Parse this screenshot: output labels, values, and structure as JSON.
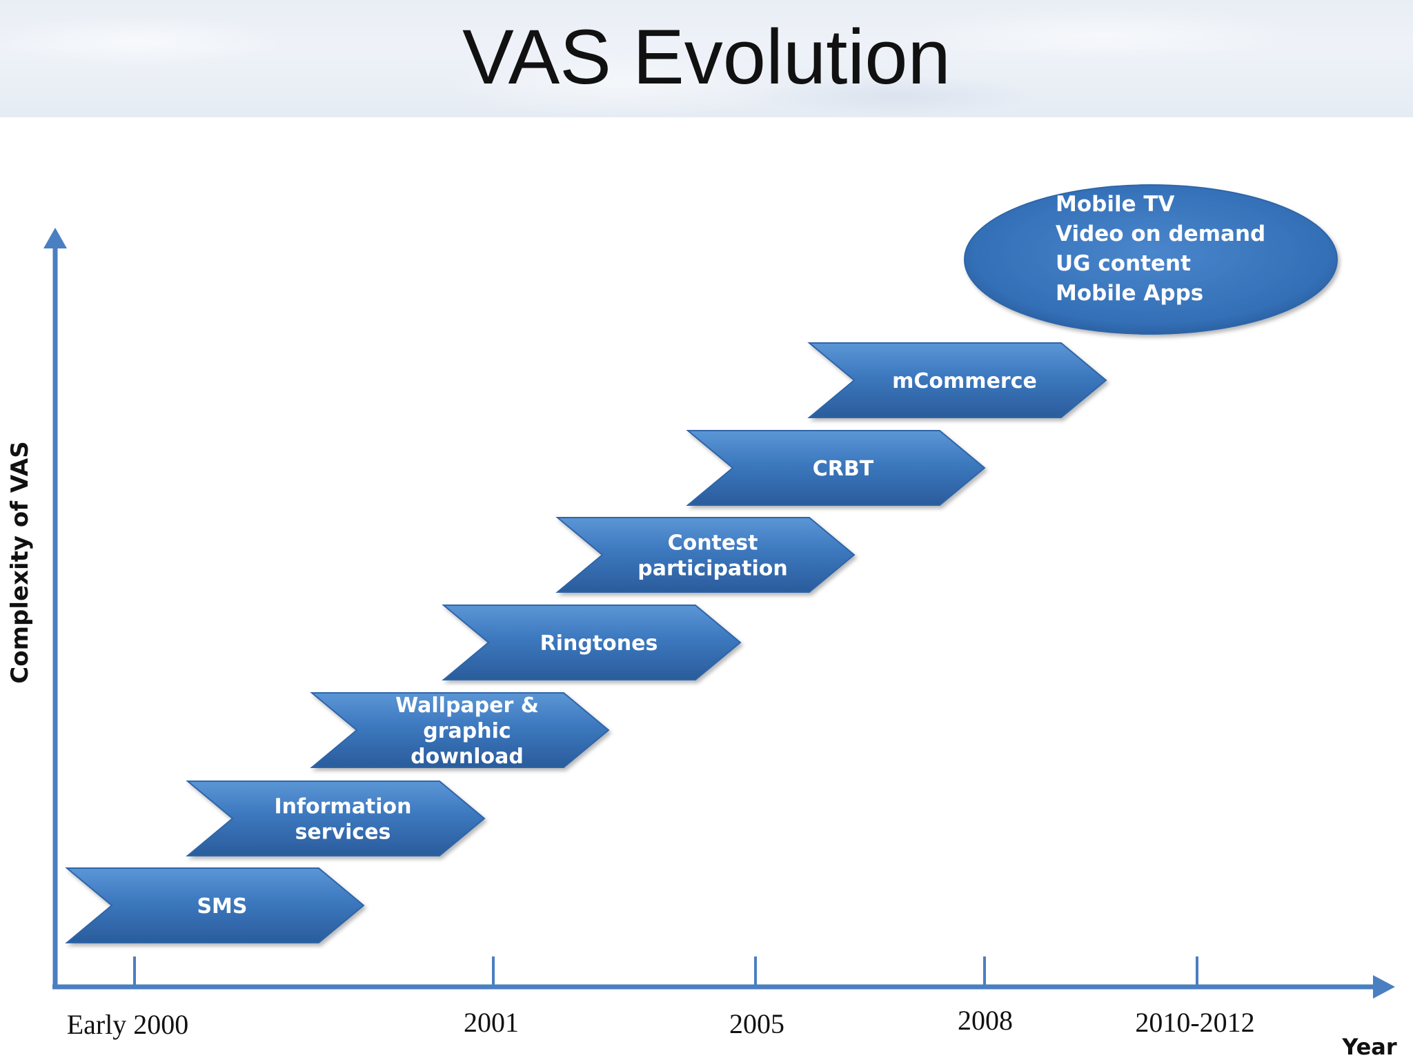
{
  "slide": {
    "title": "VAS Evolution"
  },
  "axes": {
    "y_label": "Complexity of VAS",
    "x_label": "Year",
    "year_ticks": [
      "Early 2000",
      "2001",
      "2005",
      "2008",
      "2010-2012"
    ]
  },
  "stages": [
    {
      "lines": [
        "SMS"
      ]
    },
    {
      "lines": [
        "Information",
        "services"
      ]
    },
    {
      "lines": [
        "Wallpaper &",
        "graphic",
        "download"
      ]
    },
    {
      "lines": [
        "Ringtones"
      ]
    },
    {
      "lines": [
        "Contest",
        "participation"
      ]
    },
    {
      "lines": [
        "CRBT"
      ]
    },
    {
      "lines": [
        "mCommerce"
      ]
    }
  ],
  "future_services": [
    "Mobile TV",
    "Video on demand",
    "UG content",
    "Mobile Apps"
  ],
  "colors": {
    "chevron": "#3c78be",
    "chevron_dark": "#2a5c9c",
    "axis": "#4a7fc1",
    "text_on_shape": "#ffffff"
  }
}
